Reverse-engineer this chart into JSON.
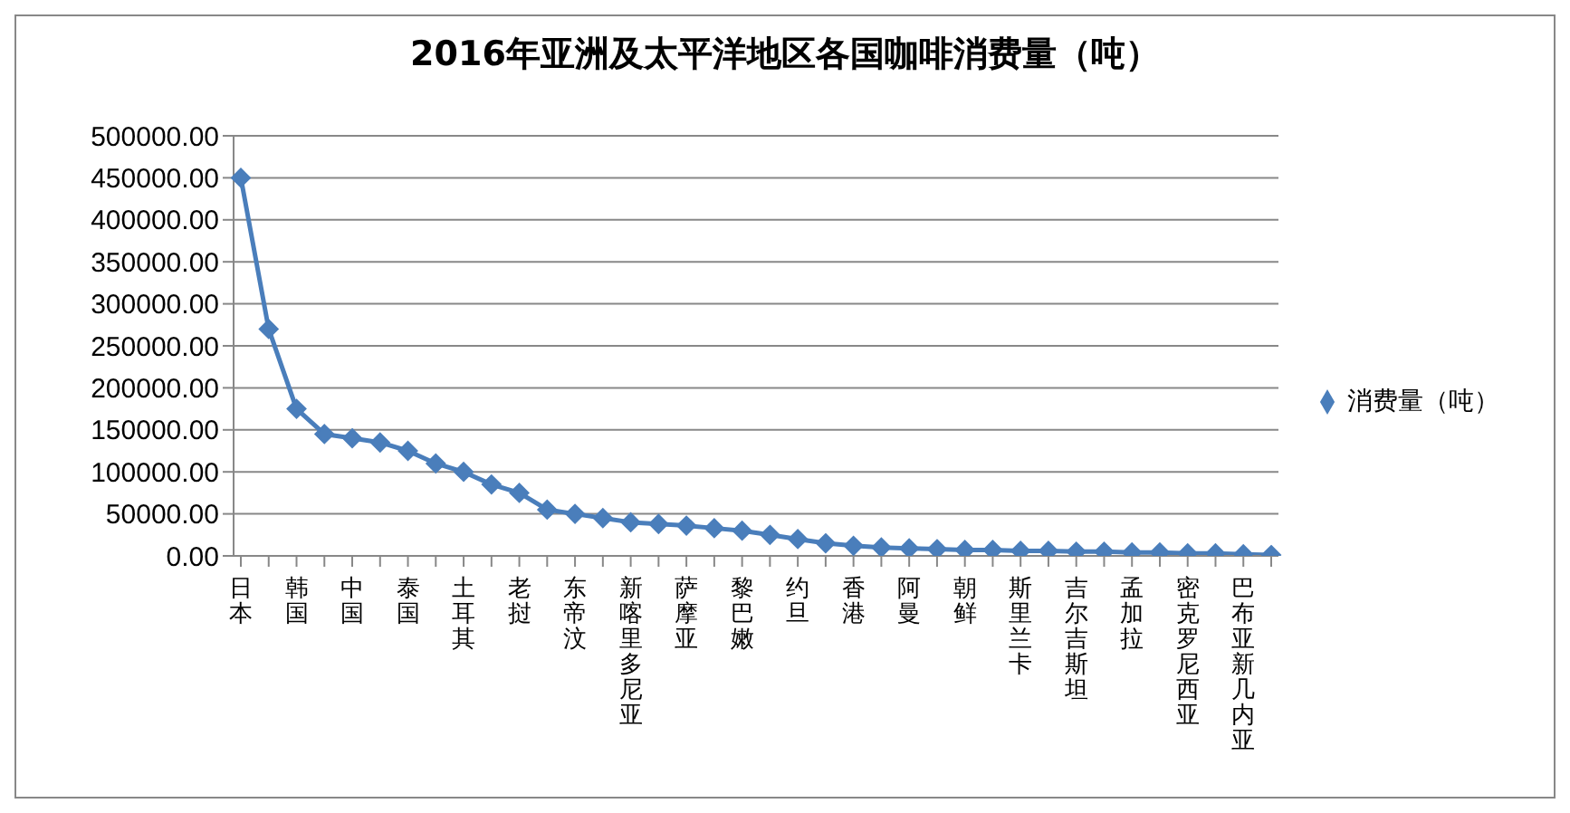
{
  "chart_data": {
    "type": "line",
    "title": "2016年亚洲及太平洋地区各国咖啡消费量（吨）",
    "categories": [
      "日本",
      null,
      "韩国",
      null,
      "中国",
      null,
      "泰国",
      null,
      "土耳其",
      null,
      "老挝",
      null,
      "东帝汶",
      null,
      "新喀里多尼亚",
      null,
      "萨摩亚",
      null,
      "黎巴嫩",
      null,
      "约旦",
      null,
      "香港",
      null,
      "阿曼",
      null,
      "朝鲜",
      null,
      "斯里兰卡",
      null,
      "吉尔吉斯坦",
      null,
      "孟加拉",
      null,
      "密克罗尼西亚",
      null,
      "巴布亚新几内亚",
      null
    ],
    "series": [
      {
        "name": "消费量（吨）",
        "color": "#4a7ebb",
        "values": [
          450000,
          270000,
          175000,
          145000,
          140000,
          135000,
          125000,
          110000,
          100000,
          85000,
          75000,
          55000,
          50000,
          45000,
          40000,
          38000,
          36000,
          33000,
          30000,
          25000,
          20000,
          15000,
          12000,
          10000,
          9000,
          8000,
          7000,
          7000,
          6000,
          6000,
          5000,
          5000,
          4000,
          4000,
          3000,
          3000,
          2000,
          1000
        ]
      }
    ],
    "ylim": [
      0,
      500000
    ],
    "yticks": [
      {
        "value": 0,
        "label": "0.00"
      },
      {
        "value": 50000,
        "label": "50000.00"
      },
      {
        "value": 100000,
        "label": "100000.00"
      },
      {
        "value": 150000,
        "label": "150000.00"
      },
      {
        "value": 200000,
        "label": "200000.00"
      },
      {
        "value": 250000,
        "label": "250000.00"
      },
      {
        "value": 300000,
        "label": "300000.00"
      },
      {
        "value": 350000,
        "label": "350000.00"
      },
      {
        "value": 400000,
        "label": "400000.00"
      },
      {
        "value": 450000,
        "label": "450000.00"
      },
      {
        "value": 500000,
        "label": "500000.00"
      }
    ],
    "grid": "y",
    "legend": "right",
    "marker": "diamond",
    "line_style": "solid"
  }
}
